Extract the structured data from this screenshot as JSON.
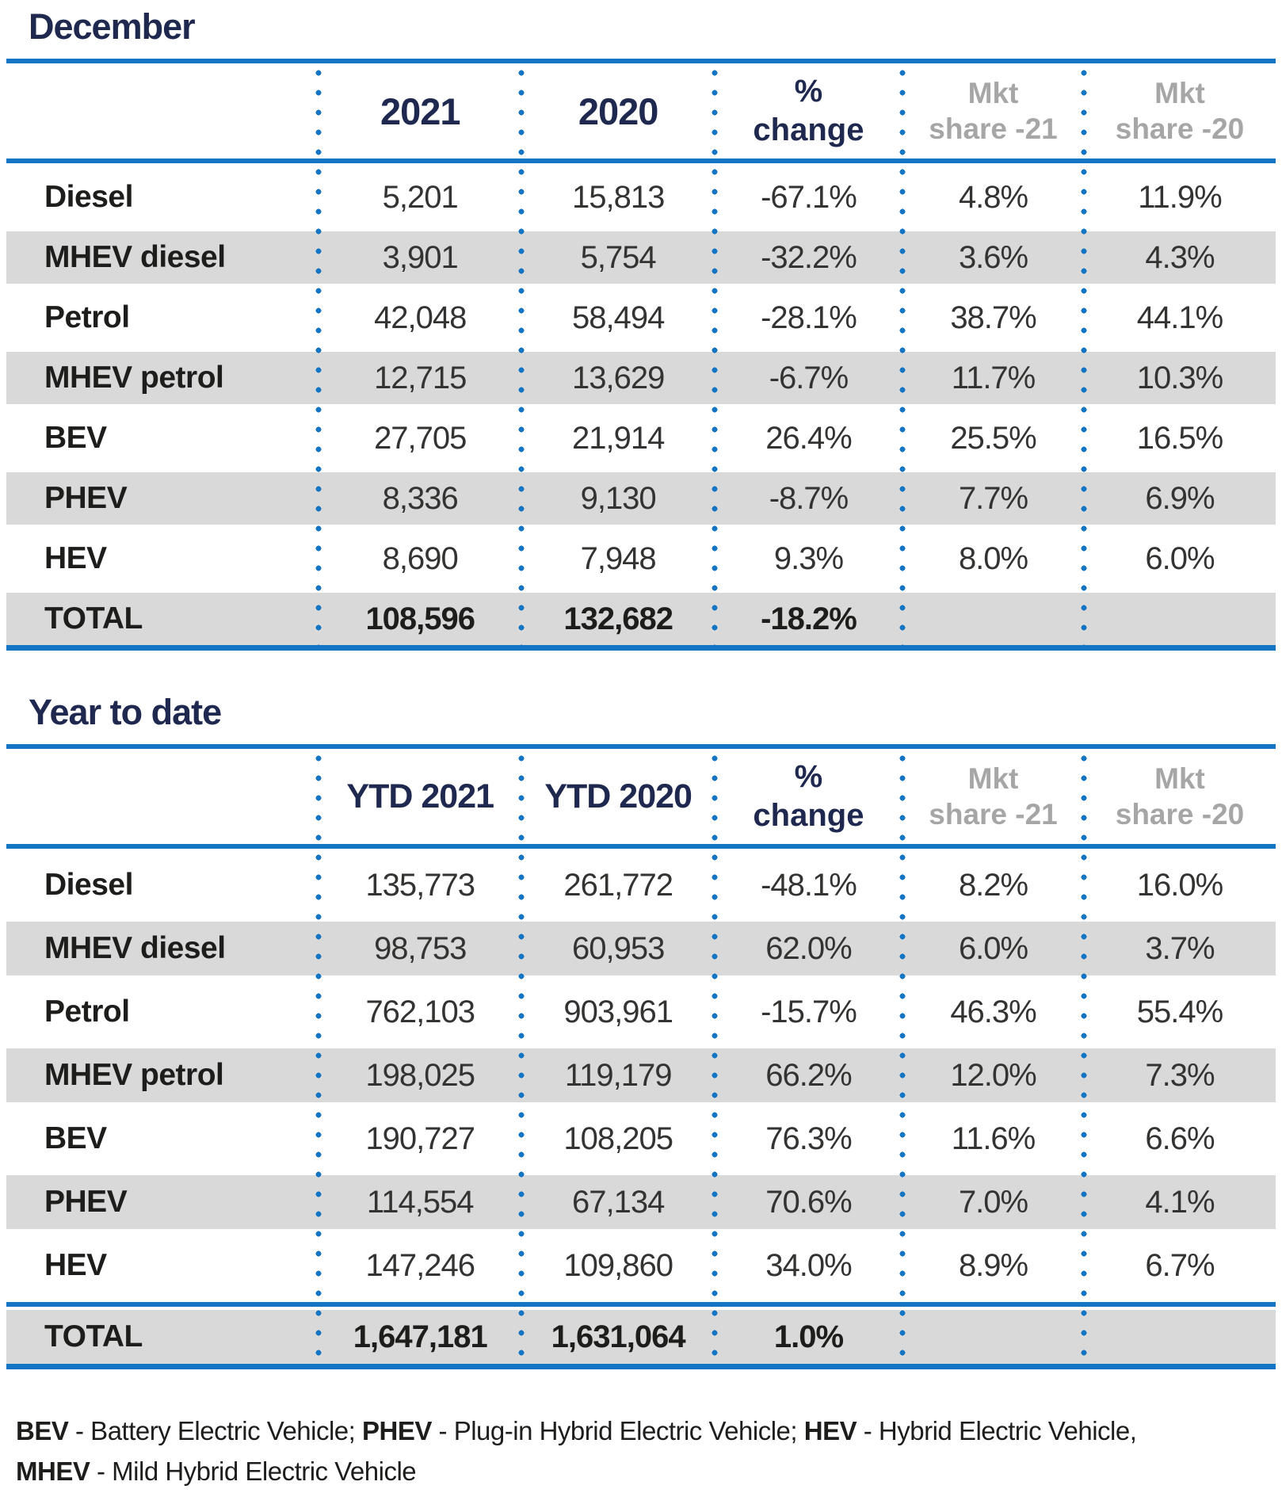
{
  "colors": {
    "accent_blue": "#1575C5",
    "heading_navy": "#1F2950",
    "muted_header_gray": "#A6A6A6",
    "row_stripe_gray": "#D9D9D9",
    "text_black": "#1D1D1B"
  },
  "december": {
    "title": "December",
    "headers": {
      "label": "",
      "col_2021": "2021",
      "col_2020": "2020",
      "pct_line1": "%",
      "pct_line2": "change",
      "mkt21_line1": "Mkt",
      "mkt21_line2": "share -21",
      "mkt20_line1": "Mkt",
      "mkt20_line2": "share -20"
    },
    "rows": [
      {
        "label": "Diesel",
        "v2021": "5,201",
        "v2020": "15,813",
        "change": "-67.1%",
        "share21": "4.8%",
        "share20": "11.9%"
      },
      {
        "label": "MHEV diesel",
        "v2021": "3,901",
        "v2020": "5,754",
        "change": "-32.2%",
        "share21": "3.6%",
        "share20": "4.3%"
      },
      {
        "label": "Petrol",
        "v2021": "42,048",
        "v2020": "58,494",
        "change": "-28.1%",
        "share21": "38.7%",
        "share20": "44.1%"
      },
      {
        "label": "MHEV petrol",
        "v2021": "12,715",
        "v2020": "13,629",
        "change": "-6.7%",
        "share21": "11.7%",
        "share20": "10.3%"
      },
      {
        "label": "BEV",
        "v2021": "27,705",
        "v2020": "21,914",
        "change": "26.4%",
        "share21": "25.5%",
        "share20": "16.5%"
      },
      {
        "label": "PHEV",
        "v2021": "8,336",
        "v2020": "9,130",
        "change": "-8.7%",
        "share21": "7.7%",
        "share20": "6.9%"
      },
      {
        "label": "HEV",
        "v2021": "8,690",
        "v2020": "7,948",
        "change": "9.3%",
        "share21": "8.0%",
        "share20": "6.0%"
      }
    ],
    "total": {
      "label": "TOTAL",
      "v2021": "108,596",
      "v2020": "132,682",
      "change": "-18.2%",
      "share21": "",
      "share20": ""
    }
  },
  "ytd": {
    "title": "Year to date",
    "headers": {
      "label": "",
      "col_2021": "YTD 2021",
      "col_2020": "YTD 2020",
      "pct_line1": "%",
      "pct_line2": "change",
      "mkt21_line1": "Mkt",
      "mkt21_line2": "share -21",
      "mkt20_line1": "Mkt",
      "mkt20_line2": "share -20"
    },
    "rows": [
      {
        "label": "Diesel",
        "v2021": "135,773",
        "v2020": "261,772",
        "change": "-48.1%",
        "share21": "8.2%",
        "share20": "16.0%"
      },
      {
        "label": "MHEV diesel",
        "v2021": "98,753",
        "v2020": "60,953",
        "change": "62.0%",
        "share21": "6.0%",
        "share20": "3.7%"
      },
      {
        "label": "Petrol",
        "v2021": "762,103",
        "v2020": "903,961",
        "change": "-15.7%",
        "share21": "46.3%",
        "share20": "55.4%"
      },
      {
        "label": "MHEV petrol",
        "v2021": "198,025",
        "v2020": "119,179",
        "change": "66.2%",
        "share21": "12.0%",
        "share20": "7.3%"
      },
      {
        "label": "BEV",
        "v2021": "190,727",
        "v2020": "108,205",
        "change": "76.3%",
        "share21": "11.6%",
        "share20": "6.6%"
      },
      {
        "label": "PHEV",
        "v2021": "114,554",
        "v2020": "67,134",
        "change": "70.6%",
        "share21": "7.0%",
        "share20": "4.1%"
      },
      {
        "label": "HEV",
        "v2021": "147,246",
        "v2020": "109,860",
        "change": "34.0%",
        "share21": "8.9%",
        "share20": "6.7%"
      }
    ],
    "total": {
      "label": "TOTAL",
      "v2021": "1,647,181",
      "v2020": "1,631,064",
      "change": "1.0%",
      "share21": "",
      "share20": ""
    }
  },
  "footer": {
    "line1": [
      {
        "term": "BEV",
        "desc": " - Battery Electric Vehicle; "
      },
      {
        "term": "PHEV",
        "desc": " - Plug-in Hybrid Electric Vehicle; "
      },
      {
        "term": "HEV",
        "desc": " - Hybrid Electric Vehicle,"
      }
    ],
    "line2": [
      {
        "term": "MHEV",
        "desc": " - Mild Hybrid Electric Vehicle"
      }
    ]
  }
}
